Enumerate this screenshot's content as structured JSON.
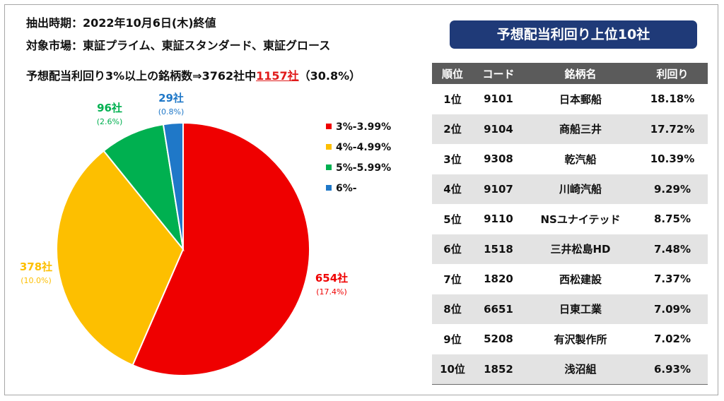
{
  "header": {
    "line1": "抽出時期：2022年10月6日(木)終値",
    "line2": "対象市場：東証プライム、東証スタンダード、東証グロース",
    "line3_pre": "予想配当利回り3%以上の銘柄数⇒3762社中",
    "line3_highlight": "1157社",
    "line3_post": "（30.8%）"
  },
  "chart_data": {
    "type": "pie",
    "start_angle_deg": 0,
    "direction": "clockwise",
    "slices": [
      {
        "legend": "3%-3.99%",
        "count": 654,
        "count_label": "654社",
        "share_label": "(17.4%)",
        "color": "#ef0000"
      },
      {
        "legend": "4%-4.99%",
        "count": 378,
        "count_label": "378社",
        "share_label": "(10.0%)",
        "color": "#fdbf00"
      },
      {
        "legend": "5%-5.99%",
        "count": 96,
        "count_label": "96社",
        "share_label": "(2.6%)",
        "color": "#00b050"
      },
      {
        "legend": "6%-",
        "count": 29,
        "count_label": "29社",
        "share_label": "(0.8%)",
        "color": "#1f78c8"
      }
    ]
  },
  "table": {
    "title": "予想配当利回り上位10社",
    "columns": [
      "順位",
      "コード",
      "銘柄名",
      "利回り"
    ],
    "rows": [
      {
        "rank": "1位",
        "code": "9101",
        "name": "日本郵船",
        "yield": "18.18%"
      },
      {
        "rank": "2位",
        "code": "9104",
        "name": "商船三井",
        "yield": "17.72%"
      },
      {
        "rank": "3位",
        "code": "9308",
        "name": "乾汽船",
        "yield": "10.39%"
      },
      {
        "rank": "4位",
        "code": "9107",
        "name": "川崎汽船",
        "yield": "9.29%"
      },
      {
        "rank": "5位",
        "code": "9110",
        "name": "NSユナイテッド",
        "yield": "8.75%"
      },
      {
        "rank": "6位",
        "code": "1518",
        "name": "三井松島HD",
        "yield": "7.48%"
      },
      {
        "rank": "7位",
        "code": "1820",
        "name": "西松建設",
        "yield": "7.37%"
      },
      {
        "rank": "8位",
        "code": "6651",
        "name": "日東工業",
        "yield": "7.09%"
      },
      {
        "rank": "9位",
        "code": "5208",
        "name": "有沢製作所",
        "yield": "7.02%"
      },
      {
        "rank": "10位",
        "code": "1852",
        "name": "浅沼組",
        "yield": "6.93%"
      }
    ]
  }
}
